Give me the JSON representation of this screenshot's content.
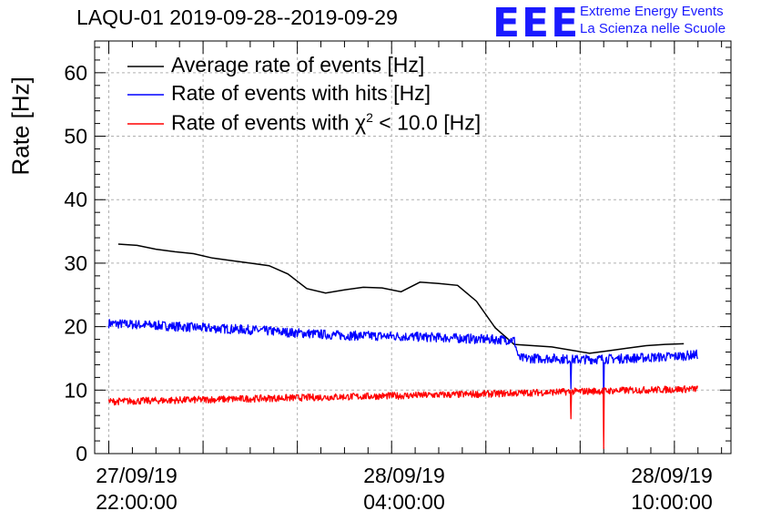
{
  "header": {
    "title": "LAQU-01 2019-09-28--2019-09-29",
    "logo_mark": "EEE",
    "logo_line1": "Extreme Energy Events",
    "logo_line2": "La Scienza nelle Scuole"
  },
  "chart_data": {
    "type": "line",
    "title": "LAQU-01 2019-09-28--2019-09-29",
    "xlabel": "",
    "ylabel": "Rate [Hz]",
    "ylim": [
      0,
      65
    ],
    "xlim_hours": [
      -0.3,
      13.2
    ],
    "y_ticks": [
      0,
      10,
      20,
      30,
      40,
      50,
      60
    ],
    "grid": true,
    "legend": "top-left",
    "x_ticks": [
      {
        "hour": 0,
        "line1": "27/09/19",
        "line2": "22:00:00"
      },
      {
        "hour": 6,
        "line1": "28/09/19",
        "line2": "04:00:00"
      },
      {
        "hour": 12,
        "line1": "28/09/19",
        "line2": "10:00:00"
      }
    ],
    "series": [
      {
        "name": "Average rate of events [Hz]",
        "color": "#000000",
        "x": [
          0.2,
          0.6,
          1.0,
          1.4,
          1.8,
          2.2,
          2.6,
          3.0,
          3.4,
          3.8,
          4.2,
          4.6,
          5.0,
          5.4,
          5.8,
          6.2,
          6.6,
          7.0,
          7.4,
          7.8,
          8.2,
          8.6,
          9.0,
          9.4,
          9.8,
          10.2,
          10.6,
          11.0,
          11.4,
          11.8,
          12.2
        ],
        "y": [
          33.0,
          32.8,
          32.2,
          31.8,
          31.5,
          30.8,
          30.4,
          30.0,
          29.6,
          28.3,
          26.0,
          25.3,
          25.8,
          26.2,
          26.1,
          25.5,
          27.0,
          26.8,
          26.5,
          24.0,
          19.8,
          17.2,
          17.0,
          16.8,
          16.3,
          15.8,
          16.2,
          16.6,
          17.0,
          17.2,
          17.3
        ]
      },
      {
        "name": "Rate of events with hits [Hz]",
        "color": "#0000ff",
        "x": [
          0.0,
          1.0,
          2.0,
          3.0,
          4.0,
          5.0,
          6.0,
          7.0,
          8.0,
          8.6,
          8.7,
          9.5,
          9.8,
          10.5,
          11.0,
          12.0,
          12.5
        ],
        "y": [
          20.5,
          20.2,
          19.8,
          19.5,
          19.0,
          18.6,
          18.5,
          18.3,
          18.0,
          17.9,
          15.0,
          15.0,
          14.8,
          14.9,
          15.0,
          15.3,
          15.6
        ],
        "dips": [
          {
            "x": 9.8,
            "y": 10.2
          },
          {
            "x": 10.5,
            "y": 7.2
          }
        ]
      },
      {
        "name": "Rate of events with χ² < 10.0 [Hz]",
        "color": "#ff0000",
        "x": [
          0.0,
          2.0,
          4.0,
          6.0,
          8.0,
          10.0,
          12.5
        ],
        "y": [
          8.2,
          8.5,
          8.8,
          9.1,
          9.4,
          9.8,
          10.2
        ],
        "dips": [
          {
            "x": 9.8,
            "y": 5.5
          },
          {
            "x": 10.5,
            "y": 0.8
          }
        ]
      }
    ],
    "legend_labels": {
      "avg": "Average rate of events [Hz]",
      "hits": "Rate of events with hits [Hz]",
      "chi_prefix": "Rate of events with χ",
      "chi_sup": "2",
      "chi_suffix": " < 10.0 [Hz]"
    }
  }
}
